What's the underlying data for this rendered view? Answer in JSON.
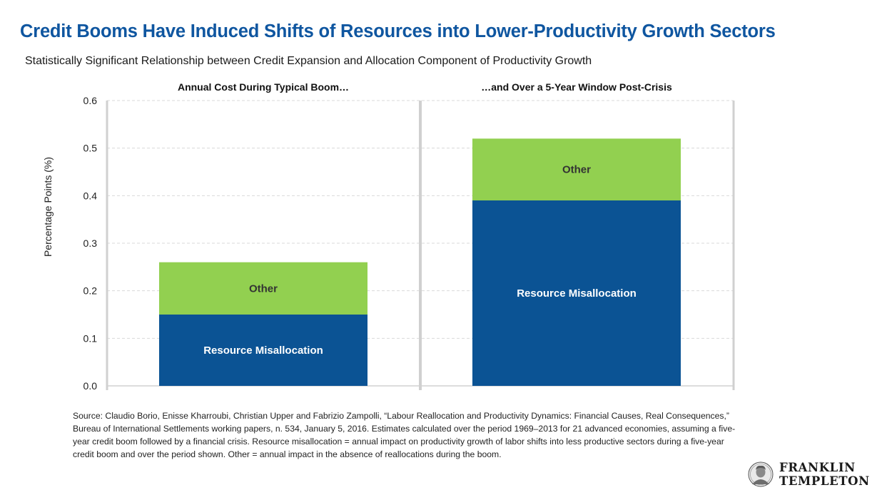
{
  "title": "Credit Booms Have Induced Shifts of Resources into Lower-Productivity Growth Sectors",
  "subtitle": "Statistically Significant Relationship between Credit Expansion and Allocation Component of Productivity Growth",
  "chart_data": {
    "type": "bar",
    "stacked": true,
    "panel_titles": [
      "Annual Cost During Typical Boom…",
      "…and Over a 5-Year Window Post-Crisis"
    ],
    "categories": [
      "Annual Cost During Typical Boom…",
      "…and Over a 5-Year Window Post-Crisis"
    ],
    "series": [
      {
        "name": "Resource Misallocation",
        "values": [
          0.15,
          0.39
        ],
        "color": "#0b5394"
      },
      {
        "name": "Other",
        "values": [
          0.11,
          0.13
        ],
        "color": "#92d050"
      }
    ],
    "ylabel": "Percentage Points (%)",
    "ylim": [
      0,
      0.6
    ],
    "yticks": [
      "0.0",
      "0.1",
      "0.2",
      "0.3",
      "0.4",
      "0.5",
      "0.6"
    ],
    "grid": true,
    "legend": "none (labels inside bars)"
  },
  "source": "Source: Claudio Borio, Enisse Kharroubi, Christian Upper and Fabrizio Zampolli, “Labour Reallocation and Productivity Dynamics: Financial Causes, Real Consequences,” Bureau of International Settlements working papers, n. 534, January 5, 2016. Estimates calculated over the period 1969–2013 for 21 advanced economies, assuming a five-year credit boom followed by a financial crisis. Resource misallocation = annual impact on productivity growth of labor shifts into less productive sectors during a five-year credit boom and over the period shown. Other = annual impact in the absence of reallocations during the boom.",
  "logo": {
    "line1": "FRANKLIN",
    "line2": "TEMPLETON"
  }
}
